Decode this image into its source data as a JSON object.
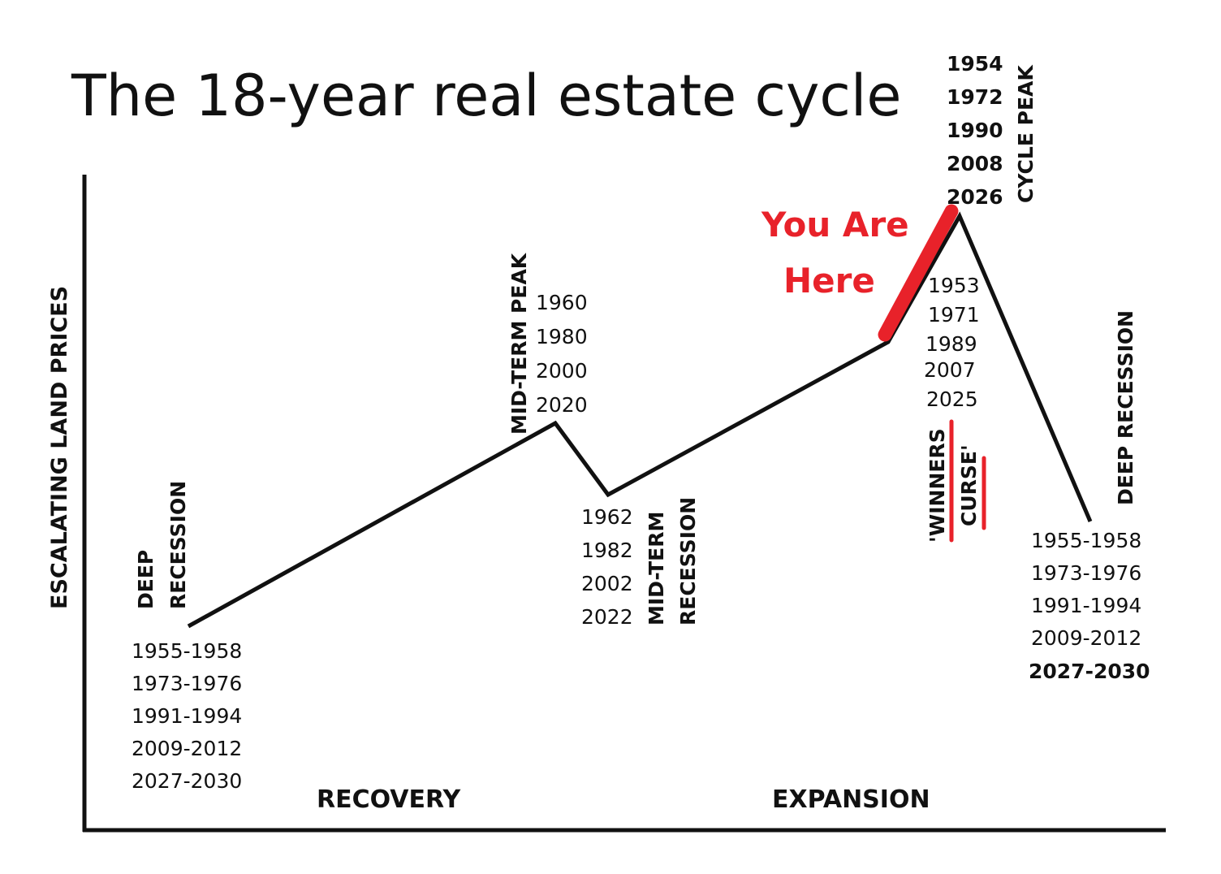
{
  "title": "The 18-year real estate cycle",
  "y_axis_label": "ESCALATING LAND PRICES",
  "phases": {
    "recovery": "RECOVERY",
    "expansion": "EXPANSION"
  },
  "points": {
    "deep_recession_start": {
      "label_line1": "DEEP",
      "label_line2": "RECESSION",
      "years": [
        "1955-1958",
        "1973-1976",
        "1991-1994",
        "2009-2012",
        "2027-2030"
      ]
    },
    "mid_term_peak": {
      "label": "MID-TERM PEAK",
      "years": [
        "1960",
        "1980",
        "2000",
        "2020"
      ]
    },
    "mid_term_recession": {
      "label_line1": "MID-TERM",
      "label_line2": "RECESSION",
      "years": [
        "1962",
        "1982",
        "2002",
        "2022"
      ]
    },
    "winners_curse": {
      "label_line1": "'WINNERS",
      "label_line2": "CURSE'",
      "years": [
        "1953",
        "1971",
        "1989",
        "2007",
        "2025"
      ]
    },
    "cycle_peak": {
      "label": "CYCLE PEAK",
      "years": [
        "1954",
        "1972",
        "1990",
        "2008",
        "2026"
      ]
    },
    "deep_recession_end": {
      "label": "DEEP RECESSION",
      "years": [
        "1955-1958",
        "1973-1976",
        "1991-1994",
        "2009-2012",
        "2027-2030"
      ]
    }
  },
  "marker": {
    "line1": "You Are",
    "line2": "Here"
  },
  "colors": {
    "line": "#111111",
    "highlight": "#e8222a"
  }
}
